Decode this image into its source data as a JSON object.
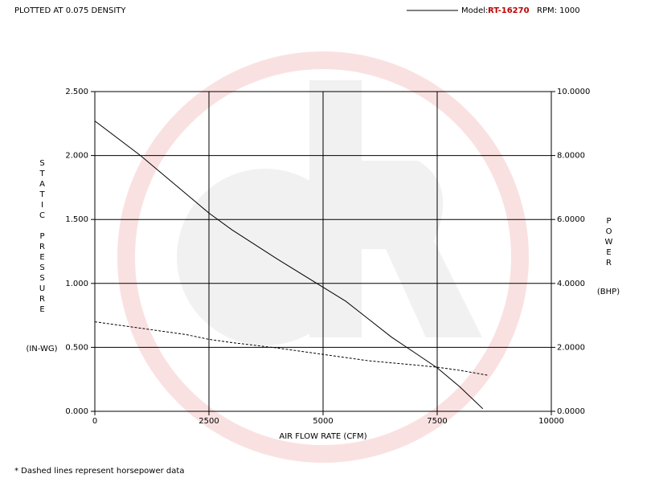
{
  "chart_data": {
    "type": "line",
    "density_note": "PLOTTED AT 0.075 DENSITY",
    "legend": {
      "model_label": "Model:",
      "model": "RT-16270",
      "rpm": "RPM: 1000"
    },
    "xlabel": "AIR FLOW RATE (CFM)",
    "ylabel": "STATIC PRESSURE",
    "yunit": "(IN-WG)",
    "y2label": "POWER",
    "y2unit": "(BHP)",
    "footnote": "*  Dashed lines represent horsepower data",
    "xlim": [
      0,
      10000
    ],
    "xticks": [
      0,
      2500,
      5000,
      7500,
      10000
    ],
    "ylim": [
      0,
      2.5
    ],
    "yticks": [
      {
        "value": 0,
        "label": "0.000"
      },
      {
        "value": 0.5,
        "label": "0.500"
      },
      {
        "value": 1,
        "label": "1.000"
      },
      {
        "value": 1.5,
        "label": "1.500"
      },
      {
        "value": 2,
        "label": "2.000"
      },
      {
        "value": 2.5,
        "label": "2.500"
      }
    ],
    "y2lim": [
      0,
      10
    ],
    "y2ticks": [
      {
        "value": 0,
        "label": "0.0000"
      },
      {
        "value": 2,
        "label": "2.0000"
      },
      {
        "value": 4,
        "label": "4.0000"
      },
      {
        "value": 6,
        "label": "6.0000"
      },
      {
        "value": 8,
        "label": "8.0000"
      },
      {
        "value": 10,
        "label": "10.0000"
      }
    ],
    "grid": true,
    "series": [
      {
        "color": "#000000",
        "style": "solid",
        "axis": "y",
        "x": [
          0,
          1000,
          2000,
          2500,
          3000,
          4000,
          5000,
          5500,
          6000,
          6500,
          7000,
          7500,
          8000,
          8500
        ],
        "values": [
          2.27,
          2.0,
          1.7,
          1.55,
          1.42,
          1.19,
          0.97,
          0.86,
          0.72,
          0.58,
          0.46,
          0.34,
          0.19,
          0.02
        ]
      },
      {
        "color": "#000000",
        "style": "dashed",
        "axis": "y2",
        "x": [
          0,
          1000,
          2000,
          2500,
          3000,
          4000,
          5000,
          6000,
          7000,
          7500,
          8000,
          8600
        ],
        "values": [
          2.8,
          2.6,
          2.4,
          2.25,
          2.15,
          1.98,
          1.78,
          1.58,
          1.45,
          1.38,
          1.28,
          1.13
        ]
      }
    ]
  }
}
